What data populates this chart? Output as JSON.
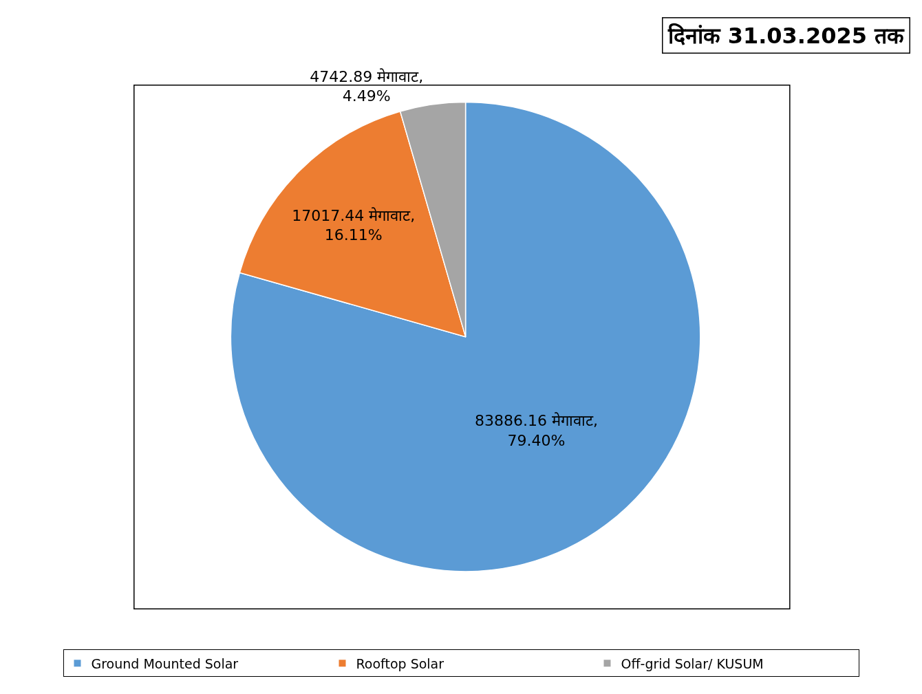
{
  "chart_data": {
    "type": "pie",
    "title": "दिनांक 31.03.2025 तक",
    "categories": [
      "Ground Mounted Solar",
      "Rooftop Solar",
      "Off-grid Solar/ KUSUM"
    ],
    "values": [
      83886.16,
      17017.44,
      4742.89
    ],
    "colors": [
      "#5b9bd5",
      "#ed7d31",
      "#a5a5a5"
    ],
    "value_labels": [
      "83886.16 मेगावाट,\n79.40%",
      "17017.44 मेगावाट,\n16.11%",
      "4742.89 मेगावाट,\n4.49%"
    ],
    "legend": "bottom"
  }
}
